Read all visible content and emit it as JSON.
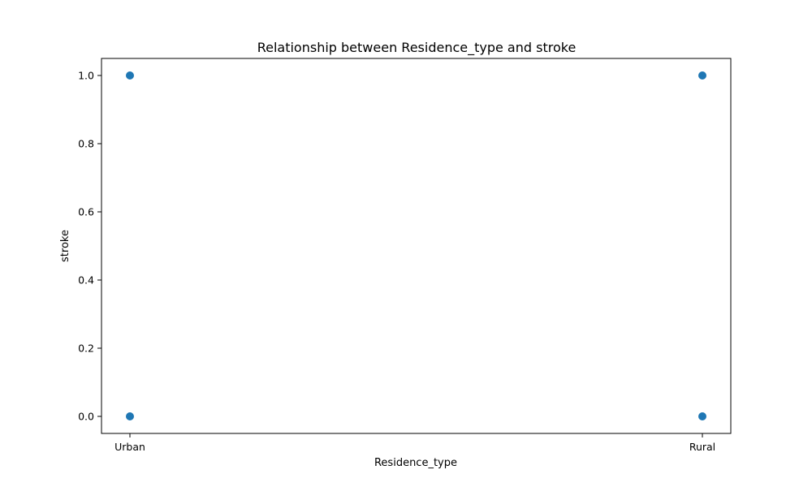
{
  "chart_data": {
    "type": "scatter",
    "title": "Relationship between Residence_type and stroke",
    "xlabel": "Residence_type",
    "ylabel": "stroke",
    "x_categories": [
      "Urban",
      "Rural"
    ],
    "y_ticks": [
      "0.0",
      "0.2",
      "0.4",
      "0.6",
      "0.8",
      "1.0"
    ],
    "y_tick_values": [
      0.0,
      0.2,
      0.4,
      0.6,
      0.8,
      1.0
    ],
    "ylim": [
      -0.05,
      1.05
    ],
    "grid": false,
    "marker_color": "#1f77b4",
    "points": [
      {
        "x": "Urban",
        "y": 1.0
      },
      {
        "x": "Urban",
        "y": 0.0
      },
      {
        "x": "Rural",
        "y": 1.0
      },
      {
        "x": "Rural",
        "y": 0.0
      }
    ]
  }
}
